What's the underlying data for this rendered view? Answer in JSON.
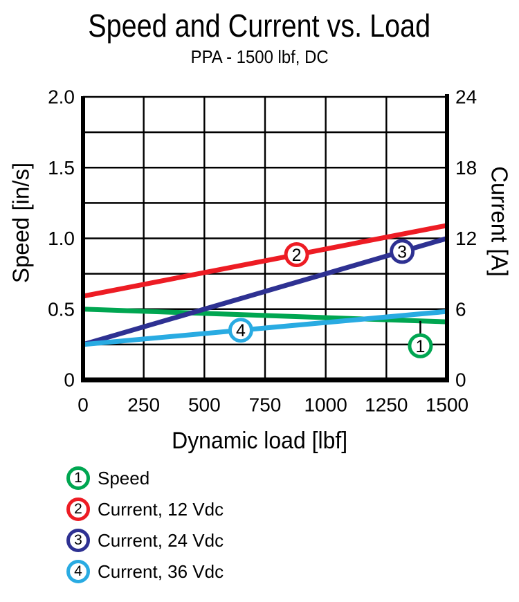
{
  "title": "Speed and Current vs. Load",
  "subtitle": "PPA - 1500 lbf, DC",
  "chart_data": {
    "type": "line",
    "title": "Speed and Current vs. Load",
    "subtitle": "PPA - 1500 lbf, DC",
    "xlabel": "Dynamic load [lbf]",
    "ylabel_left": "Speed [in/s]",
    "ylabel_right": "Current [A]",
    "xlim": [
      0,
      1500
    ],
    "ylim_left": [
      0,
      2.0
    ],
    "ylim_right": [
      0,
      24
    ],
    "grid": true,
    "grid_x": [
      250,
      500,
      750,
      1000,
      1250
    ],
    "grid_y_left": [
      0.25,
      0.5,
      0.75,
      1.0,
      1.25,
      1.5,
      1.75
    ],
    "xticks": {
      "values": [
        0,
        250,
        500,
        750,
        1000,
        1250,
        1500
      ],
      "labels": [
        "0",
        "250",
        "500",
        "750",
        "1000",
        "1250",
        "1500"
      ]
    },
    "yticks_left": {
      "values": [
        2.0,
        1.5,
        1.0,
        0.5,
        0
      ],
      "labels": [
        "2.0",
        "1.5",
        "1.0",
        "0.5",
        "0"
      ]
    },
    "yticks_right": {
      "values": [
        24,
        18,
        12,
        6,
        0
      ],
      "labels": [
        "24",
        "18",
        "12",
        "6",
        "0"
      ]
    },
    "axis_color": "#000000",
    "series": [
      {
        "id": "speed",
        "name": "Speed",
        "axis": "left",
        "color": "#00a651",
        "x": [
          0,
          1500
        ],
        "y": [
          0.5,
          0.41
        ],
        "unit": "in/s",
        "marker": {
          "x": 1390,
          "label": "1",
          "dy": 36,
          "leader": true
        }
      },
      {
        "id": "current-12vdc",
        "name": "Current, 12 Vdc",
        "axis": "right",
        "color": "#ed1c24",
        "x": [
          0,
          1500
        ],
        "y": [
          7.1,
          13.1
        ],
        "unit": "A",
        "marker": {
          "x": 880,
          "label": "2",
          "dy": 0,
          "leader": false
        }
      },
      {
        "id": "current-24vdc",
        "name": "Current, 24 Vdc",
        "axis": "right",
        "color": "#2e3192",
        "x": [
          0,
          1500
        ],
        "y": [
          3.0,
          12.0
        ],
        "unit": "A",
        "marker": {
          "x": 1315,
          "label": "3",
          "dy": 0,
          "leader": false
        }
      },
      {
        "id": "current-36vdc",
        "name": "Current, 36 Vdc",
        "axis": "right",
        "color": "#29abe2",
        "x": [
          0,
          1500
        ],
        "y": [
          3.0,
          5.8
        ],
        "unit": "A",
        "marker": {
          "x": 650,
          "label": "4",
          "dy": 0,
          "leader": false
        }
      }
    ],
    "legend_position": "bottom-left"
  },
  "legend": {
    "items": [
      {
        "num": "1",
        "label": "Speed",
        "color": "#00a651"
      },
      {
        "num": "2",
        "label": "Current, 12 Vdc",
        "color": "#ed1c24"
      },
      {
        "num": "3",
        "label": "Current, 24 Vdc",
        "color": "#2e3192"
      },
      {
        "num": "4",
        "label": "Current, 36 Vdc",
        "color": "#29abe2"
      }
    ]
  }
}
